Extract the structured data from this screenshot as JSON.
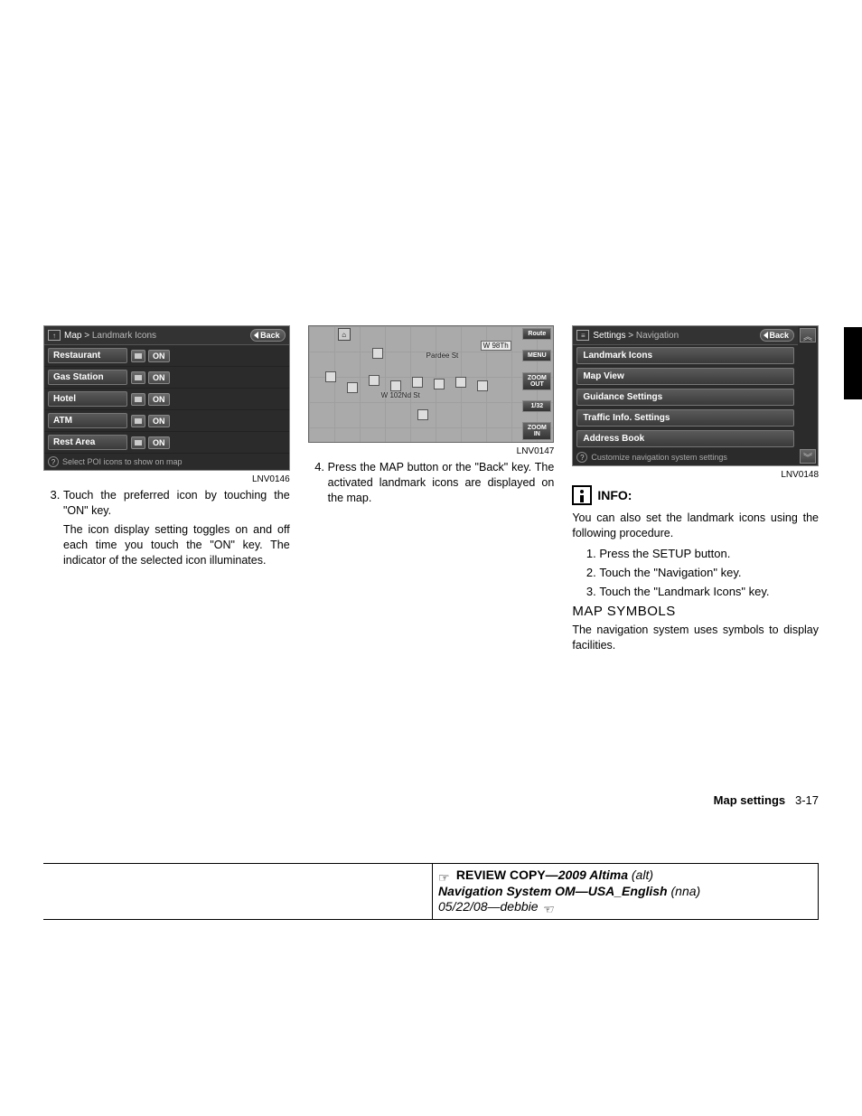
{
  "screenshot1": {
    "crumb_root": "Map",
    "crumb_leaf": "Landmark Icons",
    "back": "Back",
    "items": [
      {
        "label": "Restaurant",
        "state": "ON"
      },
      {
        "label": "Gas Station",
        "state": "ON"
      },
      {
        "label": "Hotel",
        "state": "ON"
      },
      {
        "label": "ATM",
        "state": "ON"
      },
      {
        "label": "Rest Area",
        "state": "ON"
      }
    ],
    "hint": "Select POI icons to show on map",
    "figure_id": "LNV0146"
  },
  "col1": {
    "step_num": "3.",
    "step3_a": "Touch the preferred icon by touching the \"ON\" key.",
    "step3_b": "The icon display setting toggles on and off each time you touch the \"ON\" key. The indicator of the selected icon illuminates."
  },
  "screenshot2": {
    "street1": "Pardee St",
    "street2": "W 102Nd St",
    "heading": "W 98Th",
    "side_btns": [
      "Route",
      "MENU",
      "ZOOM OUT",
      "1/32",
      "ZOOM IN"
    ],
    "figure_id": "LNV0147"
  },
  "col2": {
    "step_num": "4.",
    "step4": "Press the MAP button or the \"Back\" key. The activated landmark icons are displayed on the map."
  },
  "screenshot3": {
    "crumb_root": "Settings",
    "crumb_leaf": "Navigation",
    "back": "Back",
    "items": [
      "Landmark Icons",
      "Map View",
      "Guidance Settings",
      "Traffic Info. Settings",
      "Address Book"
    ],
    "hint": "Customize navigation system settings",
    "figure_id": "LNV0148"
  },
  "col3": {
    "info_label": "INFO:",
    "info_text": "You can also set the landmark icons using the following procedure.",
    "steps": [
      "Press the SETUP button.",
      "Touch the \"Navigation\" key.",
      "Touch the \"Landmark Icons\" key."
    ],
    "section_heading": "MAP SYMBOLS",
    "section_text": "The navigation system uses symbols to display facilities."
  },
  "footer": {
    "label": "Map settings",
    "page": "3-17"
  },
  "review": {
    "rc": "REVIEW COPY—",
    "model": "2009 Altima",
    "alt": "(alt)",
    "title": "Navigation System OM—USA_English",
    "nna": "(nna)",
    "date_author": "05/22/08—debbie"
  },
  "colors": {
    "screenshot_bg": "#2b2b2b",
    "btn_grad_top": "#5a5a5a",
    "btn_grad_bot": "#3a3a3a",
    "map_bg": "#aaaaaa"
  }
}
